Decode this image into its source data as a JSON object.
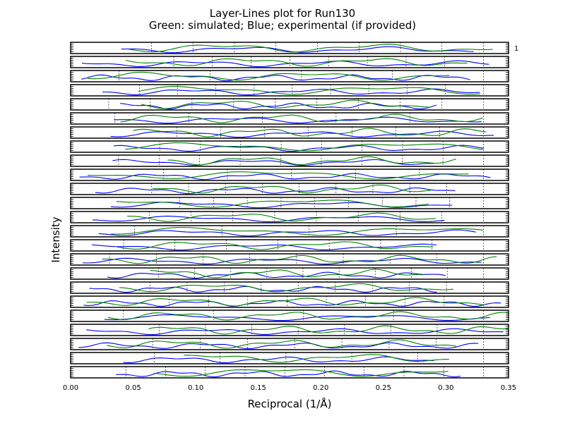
{
  "chart_data": {
    "type": "line",
    "title_lines": [
      "Layer-Lines plot for Run130",
      "Green: simulated; Blue; experimental (if provided)"
    ],
    "xlabel": "Reciprocal (1/Å)",
    "ylabel": "Intensity",
    "xlim": [
      0.0,
      0.35
    ],
    "x_ticks": [
      "0.00",
      "0.05",
      "0.10",
      "0.15",
      "0.20",
      "0.25",
      "0.30",
      "0.35"
    ],
    "panel_count": 24,
    "first_panel_label": "1",
    "grid": "vertical dashed lines per panel",
    "series": [
      {
        "name": "simulated",
        "color": "#008000"
      },
      {
        "name": "experimental",
        "color": "#0000ff"
      }
    ]
  }
}
